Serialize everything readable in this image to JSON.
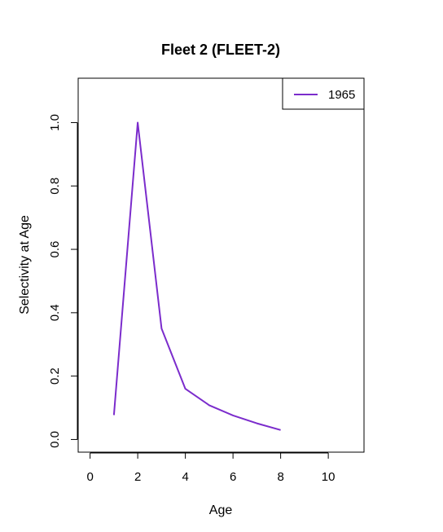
{
  "chart_data": {
    "type": "line",
    "title": "Fleet 2 (FLEET-2)",
    "xlabel": "Age",
    "ylabel": "Selectivity at Age",
    "xlim": [
      -0.5,
      11.5
    ],
    "ylim": [
      -0.04,
      1.14
    ],
    "x_ticks": [
      0,
      2,
      4,
      6,
      8,
      10
    ],
    "y_ticks": [
      0.0,
      0.2,
      0.4,
      0.6,
      0.8,
      1.0
    ],
    "x_tick_labels": [
      "0",
      "2",
      "4",
      "6",
      "8",
      "10"
    ],
    "y_tick_labels": [
      "0.0",
      "0.2",
      "0.4",
      "0.6",
      "0.8",
      "1.0"
    ],
    "grid": false,
    "legend_position": "top-right",
    "series": [
      {
        "name": "1965",
        "color": "#7b2ccc",
        "x": [
          1,
          2,
          3,
          4,
          5,
          6,
          7,
          8
        ],
        "y": [
          0.077,
          1.0,
          0.35,
          0.16,
          0.108,
          0.076,
          0.051,
          0.03
        ]
      }
    ]
  }
}
